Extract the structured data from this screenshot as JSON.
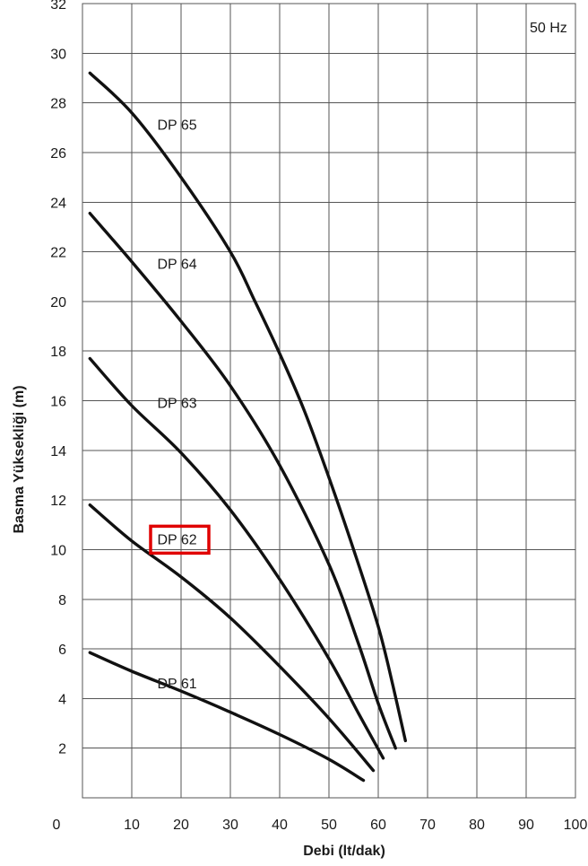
{
  "chart_data": {
    "type": "line",
    "title": "",
    "frequency_label": "50 Hz",
    "xlabel": "Debi (lt/dak)",
    "ylabel": "Basma Yüksekliği (m)",
    "xlim": [
      0,
      100
    ],
    "ylim": [
      0,
      32
    ],
    "x_ticks": [
      0,
      10,
      20,
      30,
      40,
      50,
      60,
      70,
      80,
      90,
      100
    ],
    "x_tick_labels": [
      "0",
      "10",
      "20",
      "30",
      "40",
      "50",
      "60",
      "70",
      "80",
      "90",
      "100"
    ],
    "y_ticks": [
      2,
      4,
      6,
      8,
      10,
      12,
      14,
      16,
      18,
      20,
      22,
      24,
      26,
      28,
      30,
      32
    ],
    "y_tick_labels": [
      "2",
      "4",
      "6",
      "8",
      "10",
      "12",
      "14",
      "16",
      "18",
      "20",
      "22",
      "24",
      "26",
      "28",
      "30",
      "32"
    ],
    "grid": true,
    "highlight_color": "#e00000",
    "highlighted_series": "DP 62",
    "series": [
      {
        "name": "DP 61",
        "label_at": [
          15,
          4.6
        ],
        "points": [
          [
            1.5,
            5.85
          ],
          [
            10,
            5.1
          ],
          [
            20,
            4.3
          ],
          [
            30,
            3.45
          ],
          [
            40,
            2.55
          ],
          [
            50,
            1.55
          ],
          [
            57,
            0.7
          ]
        ]
      },
      {
        "name": "DP 62",
        "label_at": [
          15,
          10.4
        ],
        "points": [
          [
            1.5,
            11.8
          ],
          [
            10,
            10.35
          ],
          [
            20,
            8.9
          ],
          [
            30,
            7.25
          ],
          [
            40,
            5.3
          ],
          [
            50,
            3.2
          ],
          [
            59,
            1.1
          ]
        ]
      },
      {
        "name": "DP 63",
        "label_at": [
          15,
          15.9
        ],
        "points": [
          [
            1.5,
            17.7
          ],
          [
            10,
            15.8
          ],
          [
            20,
            13.9
          ],
          [
            30,
            11.6
          ],
          [
            40,
            8.8
          ],
          [
            50,
            5.6
          ],
          [
            56,
            3.4
          ],
          [
            61,
            1.6
          ]
        ]
      },
      {
        "name": "DP 64",
        "label_at": [
          15,
          21.5
        ],
        "points": [
          [
            1.5,
            23.55
          ],
          [
            10,
            21.6
          ],
          [
            20,
            19.2
          ],
          [
            30,
            16.6
          ],
          [
            40,
            13.4
          ],
          [
            50,
            9.4
          ],
          [
            56,
            6.2
          ],
          [
            60,
            3.8
          ],
          [
            63.5,
            2.0
          ]
        ]
      },
      {
        "name": "DP 65",
        "label_at": [
          15,
          27.1
        ],
        "points": [
          [
            1.5,
            29.2
          ],
          [
            10,
            27.6
          ],
          [
            20,
            25.0
          ],
          [
            30,
            22.0
          ],
          [
            35,
            20.0
          ],
          [
            40,
            17.9
          ],
          [
            45,
            15.6
          ],
          [
            50,
            12.9
          ],
          [
            55,
            10.0
          ],
          [
            60,
            6.9
          ],
          [
            63,
            4.5
          ],
          [
            65.5,
            2.3
          ]
        ]
      }
    ]
  }
}
